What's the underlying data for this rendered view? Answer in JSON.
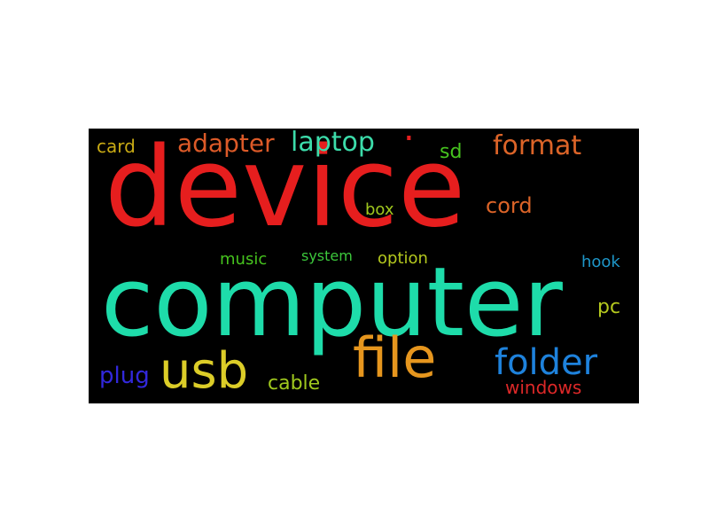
{
  "background_color": "#ffffff",
  "cloud_background": "#000000",
  "words": {
    "device": {
      "text": "device",
      "color": "#e61e1e"
    },
    "computer": {
      "text": "computer",
      "color": "#1edcaa"
    },
    "usb": {
      "text": "usb",
      "color": "#dccd28"
    },
    "file": {
      "text": "file",
      "color": "#e6961e"
    },
    "folder": {
      "text": "folder",
      "color": "#1e82dc"
    },
    "adapter": {
      "text": "adapter",
      "color": "#dc5a28"
    },
    "laptop": {
      "text": "laptop",
      "color": "#3cdcaa"
    },
    "format": {
      "text": "format",
      "color": "#dc6428"
    },
    "dot": {
      "text": ".",
      "color": "#e61e1e"
    },
    "card": {
      "text": "card",
      "color": "#c8aa14"
    },
    "sd": {
      "text": "sd",
      "color": "#46c31e"
    },
    "cord": {
      "text": "cord",
      "color": "#dc6428"
    },
    "box": {
      "text": "box",
      "color": "#a0c81e"
    },
    "music": {
      "text": "music",
      "color": "#46c31e"
    },
    "system": {
      "text": "system",
      "color": "#3cc83c"
    },
    "option": {
      "text": "option",
      "color": "#b4c81e"
    },
    "hook": {
      "text": "hook",
      "color": "#1e96c8"
    },
    "pc": {
      "text": "pc",
      "color": "#b4c81e"
    },
    "plug": {
      "text": "plug",
      "color": "#3228dc"
    },
    "cable": {
      "text": "cable",
      "color": "#a0c81e"
    },
    "windows": {
      "text": "windows",
      "color": "#dc2828"
    }
  }
}
